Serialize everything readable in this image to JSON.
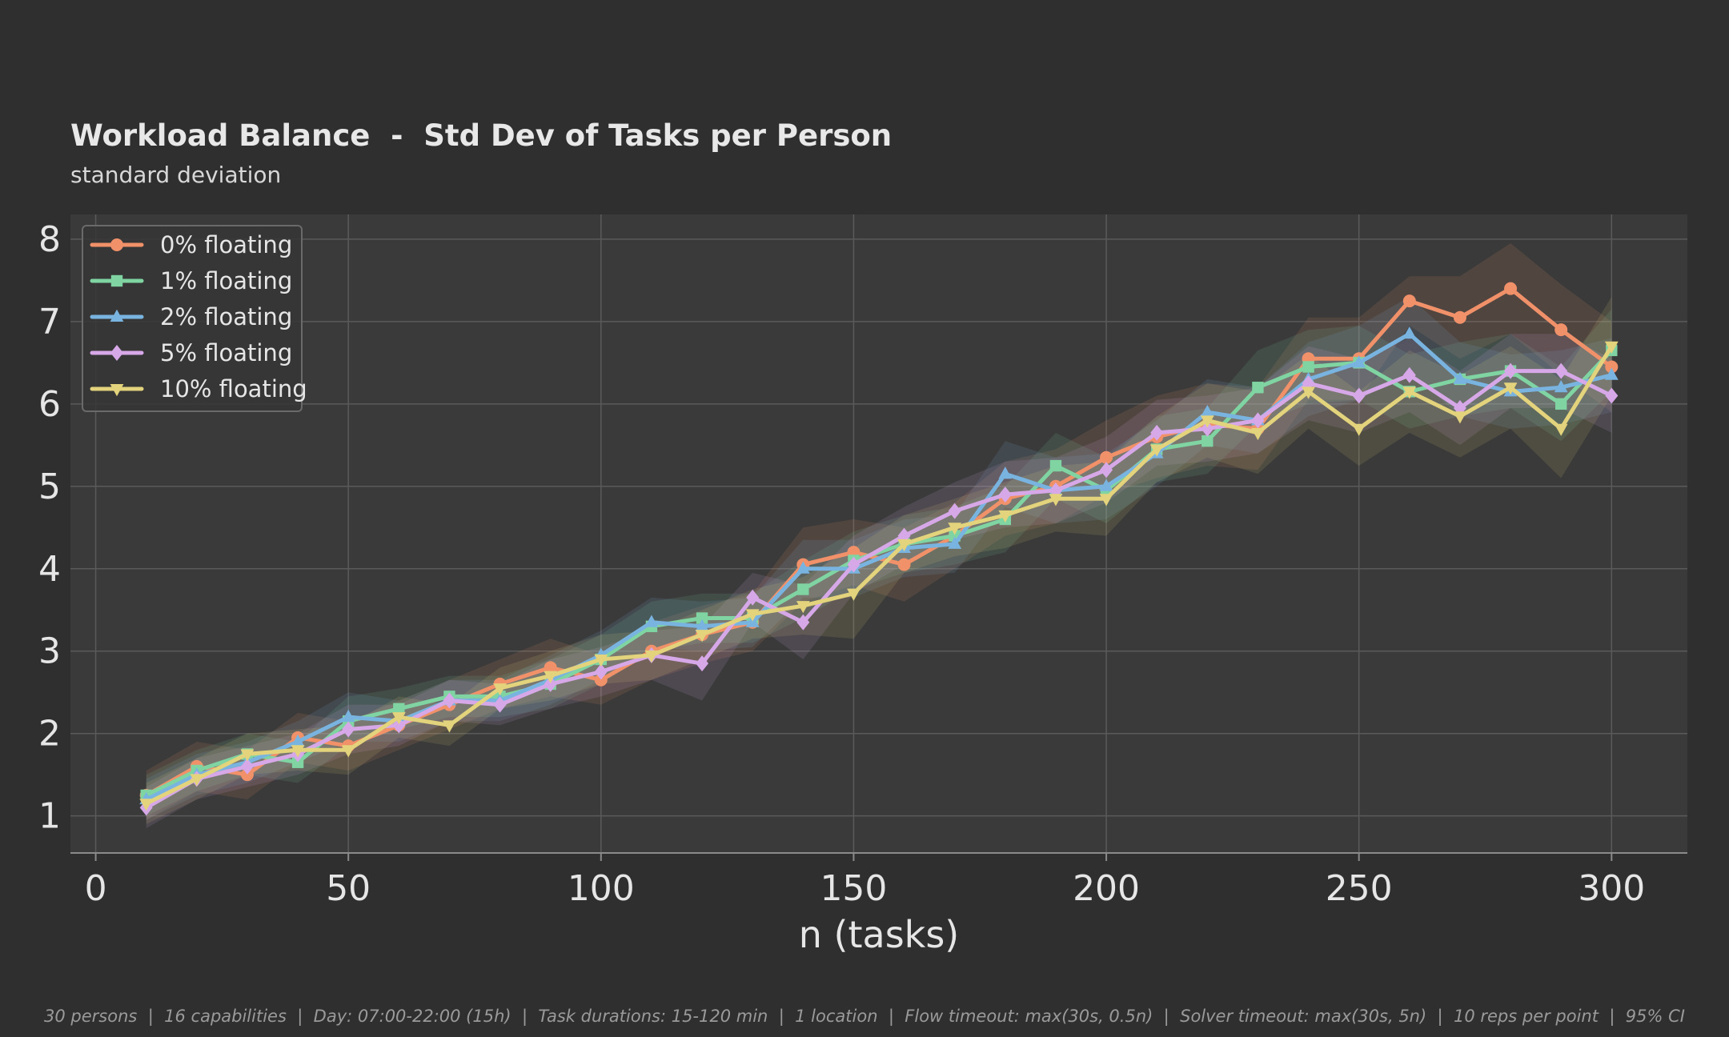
{
  "title": "Workload Balance  -  Std Dev of Tasks per Person",
  "subtitle": "standard deviation",
  "footer": "30 persons  |  16 capabilities  |  Day: 07:00-22:00 (15h)  |  Task durations: 15-120 min  |  1 location  |  Flow timeout: max(30s, 0.5n)  |  Solver timeout: max(30s, 5n)  |  10 reps per point  |  95% CI",
  "chart_data": {
    "type": "line",
    "title": "Workload Balance  -  Std Dev of Tasks per Person",
    "subtitle": "standard deviation",
    "xlabel": "n (tasks)",
    "ylabel": "",
    "xlim": [
      -5,
      315
    ],
    "ylim": [
      0.55,
      8.3
    ],
    "xticks": [
      0,
      50,
      100,
      150,
      200,
      250,
      300
    ],
    "yticks": [
      1,
      2,
      3,
      4,
      5,
      6,
      7,
      8
    ],
    "grid": true,
    "legend_position": "top-left",
    "x": [
      10,
      20,
      30,
      40,
      50,
      60,
      70,
      80,
      90,
      100,
      110,
      120,
      130,
      140,
      150,
      160,
      170,
      180,
      190,
      200,
      210,
      220,
      230,
      240,
      250,
      260,
      270,
      280,
      290,
      300
    ],
    "series": [
      {
        "name": "0% floating",
        "color": "#f0916a",
        "marker": "circle",
        "values": [
          1.25,
          1.6,
          1.5,
          1.95,
          1.85,
          2.1,
          2.35,
          2.6,
          2.8,
          2.65,
          3.0,
          3.2,
          3.35,
          4.05,
          4.2,
          4.05,
          4.4,
          4.85,
          5.0,
          5.35,
          5.6,
          5.75,
          5.7,
          6.55,
          6.55,
          7.25,
          7.05,
          7.4,
          6.9,
          6.45
        ],
        "ci": [
          0.3,
          0.3,
          0.3,
          0.3,
          0.3,
          0.3,
          0.3,
          0.3,
          0.35,
          0.3,
          0.35,
          0.35,
          0.35,
          0.45,
          0.4,
          0.45,
          0.4,
          0.45,
          0.45,
          0.45,
          0.5,
          0.5,
          0.5,
          0.5,
          0.5,
          0.3,
          0.5,
          0.55,
          0.55,
          0.55
        ]
      },
      {
        "name": "1% floating",
        "color": "#7fd4a2",
        "marker": "square",
        "values": [
          1.25,
          1.55,
          1.75,
          1.65,
          2.15,
          2.3,
          2.45,
          2.45,
          2.6,
          2.9,
          3.3,
          3.4,
          3.4,
          3.75,
          4.1,
          4.3,
          4.4,
          4.6,
          5.25,
          4.95,
          5.45,
          5.55,
          6.2,
          6.45,
          6.5,
          6.15,
          6.3,
          6.4,
          6.0,
          6.65
        ],
        "ci": [
          0.25,
          0.25,
          0.25,
          0.25,
          0.3,
          0.25,
          0.25,
          0.25,
          0.3,
          0.3,
          0.3,
          0.3,
          0.3,
          0.35,
          0.35,
          0.35,
          0.35,
          0.4,
          0.4,
          0.4,
          0.4,
          0.4,
          0.45,
          0.45,
          0.45,
          0.45,
          0.45,
          0.45,
          0.45,
          0.5
        ]
      },
      {
        "name": "2% floating",
        "color": "#79b4e0",
        "marker": "triangle",
        "values": [
          1.2,
          1.5,
          1.65,
          1.9,
          2.2,
          2.15,
          2.4,
          2.4,
          2.65,
          2.95,
          3.35,
          3.3,
          3.35,
          4.0,
          4.0,
          4.25,
          4.3,
          5.15,
          4.95,
          5.0,
          5.4,
          5.9,
          5.8,
          6.3,
          6.5,
          6.85,
          6.3,
          6.15,
          6.2,
          6.35
        ],
        "ci": [
          0.25,
          0.25,
          0.25,
          0.25,
          0.3,
          0.25,
          0.25,
          0.25,
          0.3,
          0.3,
          0.3,
          0.3,
          0.3,
          0.35,
          0.35,
          0.35,
          0.35,
          0.4,
          0.4,
          0.4,
          0.4,
          0.4,
          0.4,
          0.45,
          0.45,
          0.45,
          0.45,
          0.45,
          0.45,
          0.45
        ]
      },
      {
        "name": "5% floating",
        "color": "#d7a8e8",
        "marker": "diamond",
        "values": [
          1.1,
          1.45,
          1.6,
          1.75,
          2.05,
          2.1,
          2.4,
          2.35,
          2.6,
          2.75,
          2.95,
          2.85,
          3.65,
          3.35,
          4.05,
          4.4,
          4.7,
          4.9,
          4.95,
          5.2,
          5.65,
          5.7,
          5.8,
          6.25,
          6.1,
          6.35,
          5.95,
          6.4,
          6.4,
          6.1
        ],
        "ci": [
          0.25,
          0.25,
          0.25,
          0.25,
          0.3,
          0.25,
          0.25,
          0.25,
          0.3,
          0.3,
          0.3,
          0.45,
          0.3,
          0.45,
          0.35,
          0.35,
          0.35,
          0.4,
          0.4,
          0.4,
          0.4,
          0.4,
          0.4,
          0.45,
          0.45,
          0.45,
          0.45,
          0.45,
          0.45,
          0.45
        ]
      },
      {
        "name": "10% floating",
        "color": "#e3d37c",
        "marker": "triangle-down",
        "values": [
          1.15,
          1.45,
          1.75,
          1.8,
          1.8,
          2.2,
          2.1,
          2.55,
          2.7,
          2.9,
          2.95,
          3.2,
          3.45,
          3.55,
          3.7,
          4.3,
          4.5,
          4.65,
          4.85,
          4.85,
          5.45,
          5.8,
          5.65,
          6.15,
          5.7,
          6.15,
          5.85,
          6.2,
          5.7,
          6.7
        ],
        "ci": [
          0.25,
          0.25,
          0.25,
          0.25,
          0.3,
          0.25,
          0.25,
          0.25,
          0.3,
          0.3,
          0.3,
          0.3,
          0.3,
          0.35,
          0.55,
          0.35,
          0.35,
          0.4,
          0.4,
          0.45,
          0.4,
          0.45,
          0.5,
          0.45,
          0.45,
          0.5,
          0.5,
          0.5,
          0.6,
          0.6
        ]
      }
    ]
  }
}
